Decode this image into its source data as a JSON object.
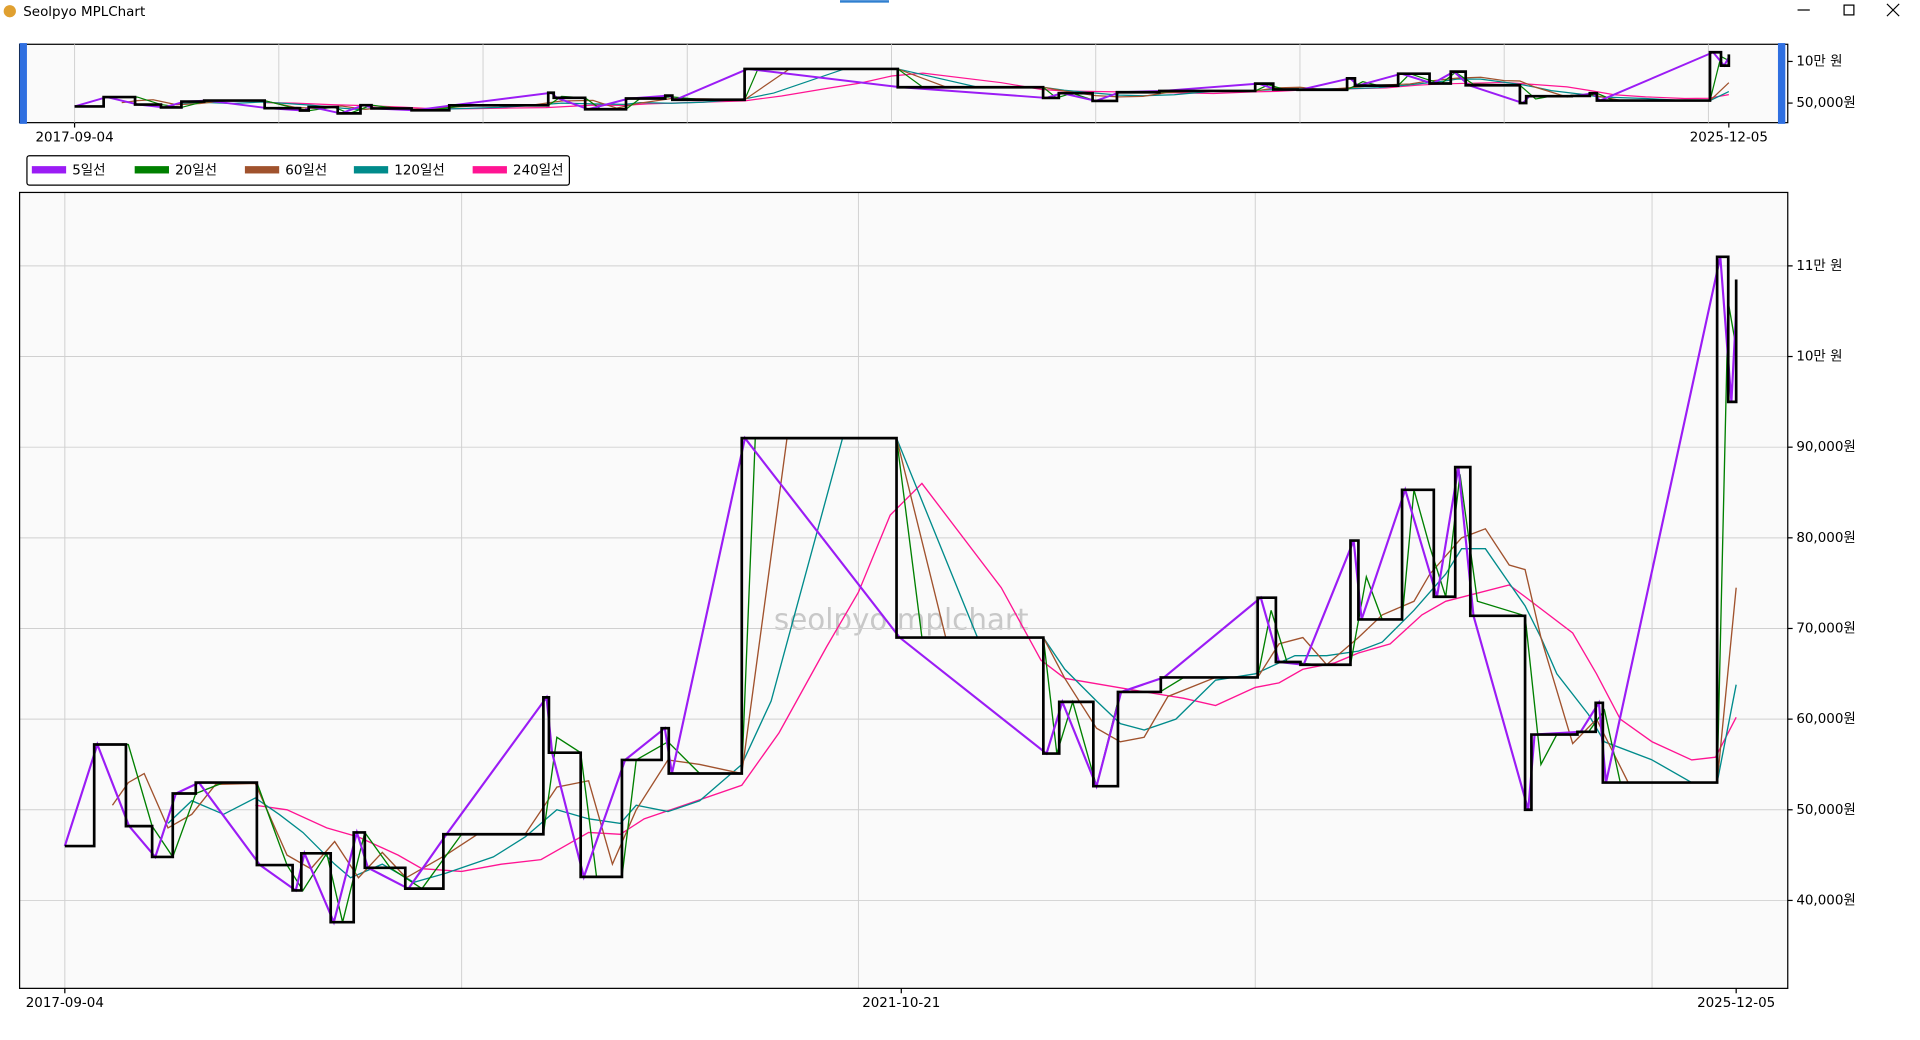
{
  "window_title": "Seolpyo MPLChart",
  "chart_data": {
    "type": "line",
    "watermark": "seolpyo mplchart",
    "color": "#000000",
    "x": [
      0,
      3.7,
      7.7,
      11,
      13.6,
      16.5,
      24.2,
      28.7,
      29.8,
      33.5,
      36.4,
      37.8,
      42.9,
      47.7,
      60.3,
      61,
      65,
      70.2,
      75.2,
      76.1,
      85.3,
      104.8,
      123.3,
      125.3,
      129.6,
      132.7,
      138.1,
      150.3,
      152.6,
      155.7,
      162,
      163,
      168.5,
      172.5,
      175.2,
      177.1,
      184,
      184.8,
      190.6,
      192.9,
      193.8,
      208.2,
      209.6,
      210.6
    ],
    "values": [
      46000,
      57200,
      48200,
      44800,
      51800,
      53000,
      43900,
      41100,
      45200,
      37600,
      47500,
      43600,
      41300,
      47300,
      62400,
      56300,
      42600,
      55500,
      59000,
      54000,
      91000,
      69000,
      56200,
      61900,
      52600,
      63000,
      64600,
      73400,
      66300,
      66000,
      79700,
      71000,
      85300,
      73500,
      87800,
      71400,
      50000,
      58300,
      58600,
      61800,
      53000,
      111000,
      95000,
      108500
    ],
    "series": [
      {
        "name": "5일선",
        "color": "#9b1cf5",
        "x": [
          0,
          4.1,
          8.1,
          11.4,
          14,
          16.9,
          24.6,
          29.1,
          30.2,
          33.9,
          36.8,
          38.2,
          43.3,
          48.1,
          60.7,
          61.4,
          65.4,
          70.6,
          75.6,
          76.5,
          85.7,
          105.2,
          123.7,
          125.7,
          130,
          133.1,
          138.5,
          150.7,
          153,
          156.1,
          162.4,
          163.4,
          168.9,
          172.9,
          175.6,
          177.5,
          184.4,
          185.2,
          191,
          193.3,
          194.2,
          208.6,
          210,
          210.6
        ],
        "values": [
          46000,
          57200,
          48200,
          44800,
          51800,
          53000,
          43900,
          41100,
          45200,
          37600,
          47500,
          43600,
          41300,
          47300,
          62400,
          56300,
          42600,
          55500,
          59000,
          54000,
          91000,
          69000,
          56200,
          61900,
          52600,
          63000,
          64600,
          73400,
          66300,
          66000,
          79700,
          71000,
          85300,
          73500,
          87800,
          71400,
          50000,
          58300,
          58600,
          61800,
          53000,
          111000,
          95000,
          105000
        ]
      },
      {
        "name": "20일선",
        "color": "#008000",
        "x": [
          5,
          8,
          11,
          13.6,
          16.5,
          20,
          24.2,
          28,
          30,
          33,
          35,
          37.8,
          41,
          45,
          50,
          60.3,
          62,
          65,
          67,
          70.2,
          72,
          76,
          80,
          85.3,
          87,
          104.8,
          108,
          123.3,
          125,
          127,
          130,
          133,
          138,
          141,
          150.3,
          152,
          154,
          158,
          162,
          164,
          166,
          168.5,
          170,
          172,
          174,
          175.8,
          178,
          184,
          186,
          188,
          192,
          194,
          196,
          208.2,
          209.6,
          210.6
        ],
        "values": [
          57200,
          57200,
          48200,
          44800,
          51800,
          53000,
          53000,
          43900,
          41100,
          45200,
          37600,
          47500,
          43600,
          41300,
          47300,
          47300,
          58000,
          56300,
          42600,
          42600,
          55500,
          57500,
          54000,
          54000,
          91000,
          91000,
          69000,
          69000,
          56200,
          61900,
          52600,
          63000,
          63000,
          64600,
          64600,
          72000,
          66300,
          66000,
          66000,
          75700,
          71000,
          71000,
          85300,
          79000,
          73500,
          87000,
          73000,
          71400,
          55000,
          58300,
          58600,
          61000,
          53000,
          53000,
          106000,
          101000
        ]
      },
      {
        "name": "60일선",
        "color": "#a0522d",
        "x": [
          6,
          8,
          10,
          13,
          16,
          19,
          24,
          28,
          31,
          34,
          37,
          40,
          43,
          48,
          52,
          58,
          62,
          66,
          69,
          72,
          76,
          80,
          85.3,
          91,
          104.8,
          111,
          123.3,
          126,
          130,
          133,
          136,
          139,
          145,
          150.3,
          153,
          156,
          159,
          163,
          166,
          170,
          172,
          176,
          179,
          182,
          184,
          186,
          190,
          193,
          197,
          208.2,
          210.6
        ],
        "values": [
          50500,
          53000,
          54000,
          48000,
          49500,
          52800,
          52900,
          45000,
          43500,
          46500,
          42500,
          45300,
          42500,
          45000,
          47300,
          47300,
          52500,
          53200,
          44000,
          50000,
          55500,
          55000,
          54000,
          91000,
          91000,
          69000,
          69000,
          64500,
          59000,
          57500,
          58000,
          62500,
          64600,
          64600,
          68300,
          69000,
          66000,
          69000,
          71500,
          73000,
          76000,
          80000,
          81000,
          77000,
          76500,
          69000,
          57300,
          60000,
          53000,
          53000,
          74500
        ]
      },
      {
        "name": "120일선",
        "color": "#008b8b",
        "x": [
          13,
          16,
          20,
          24,
          27,
          30,
          34,
          36,
          40,
          44,
          48,
          54,
          58,
          62,
          66,
          70,
          72,
          76,
          80,
          85.3,
          89,
          98,
          104.8,
          115,
          123.3,
          126,
          130,
          133,
          136,
          140,
          145,
          150,
          155,
          159,
          163,
          166,
          170,
          174,
          176,
          179,
          182,
          184,
          186,
          188,
          192,
          194,
          200,
          205,
          208.2,
          210.6
        ],
        "values": [
          48500,
          51000,
          49500,
          51300,
          49500,
          47500,
          44000,
          42500,
          44000,
          42000,
          43000,
          44800,
          47000,
          50000,
          49000,
          48500,
          50500,
          49800,
          51000,
          55000,
          62000,
          91000,
          91000,
          69000,
          69000,
          65500,
          62000,
          59500,
          58800,
          60000,
          64300,
          65000,
          67000,
          67000,
          67500,
          68500,
          72000,
          76000,
          78800,
          78800,
          75000,
          72500,
          69000,
          65000,
          60500,
          57500,
          55500,
          53000,
          53000,
          63800
        ]
      },
      {
        "name": "240일선",
        "color": "#ff1493",
        "x": [
          24,
          28,
          33,
          37,
          42,
          45,
          50,
          55,
          60,
          63,
          66,
          70,
          73,
          77,
          85.3,
          90,
          96,
          100,
          104,
          108,
          118,
          123,
          126,
          134,
          141,
          145,
          150,
          153,
          156,
          160,
          163,
          167,
          171,
          174,
          182,
          184,
          190,
          193,
          196,
          200,
          205,
          208,
          210.6
        ],
        "values": [
          50500,
          50000,
          48000,
          47000,
          45000,
          43500,
          43200,
          44000,
          44500,
          46000,
          47500,
          47300,
          49000,
          50200,
          52700,
          58500,
          68000,
          74000,
          82500,
          86000,
          74500,
          66500,
          64500,
          63300,
          62300,
          61500,
          63500,
          64000,
          65500,
          66200,
          67300,
          68300,
          71500,
          73000,
          74800,
          73500,
          69500,
          65000,
          60000,
          57500,
          55500,
          55800,
          60200
        ]
      }
    ],
    "xlim": [
      -5.7,
      217.1
    ],
    "ylim": [
      30300,
      118100
    ],
    "xticks": [
      {
        "value": 0,
        "label": "2017-09-04"
      },
      {
        "value": 105.4,
        "label": "2021-10-21"
      },
      {
        "value": 210.6,
        "label": "2025-12-05"
      }
    ],
    "xgrid": [
      0,
      50,
      100,
      150,
      200
    ],
    "yticks": [
      {
        "value": 40000,
        "label": "40,000원"
      },
      {
        "value": 50000,
        "label": "50,000원"
      },
      {
        "value": 60000,
        "label": "60,000원"
      },
      {
        "value": 70000,
        "label": "70,000원"
      },
      {
        "value": 80000,
        "label": "80,000원"
      },
      {
        "value": 90000,
        "label": "90,000원"
      },
      {
        "value": 100000,
        "label": "10만 원"
      },
      {
        "value": 110000,
        "label": "11만 원"
      }
    ],
    "grid": true,
    "legend": "upper left",
    "overview": {
      "xlim": [
        -7,
        218.1
      ],
      "ylim": [
        26500,
        120600
      ],
      "xticks": [
        {
          "value": 0,
          "label": "2017-09-04"
        },
        {
          "value": 210.6,
          "label": "2025-12-05"
        }
      ],
      "xgrid": [
        0,
        26,
        52,
        78,
        104,
        130,
        156,
        182,
        208
      ],
      "yticks": [
        {
          "value": 100000,
          "label": "10만 원"
        },
        {
          "value": 50000,
          "label": "50,000원"
        }
      ]
    }
  }
}
